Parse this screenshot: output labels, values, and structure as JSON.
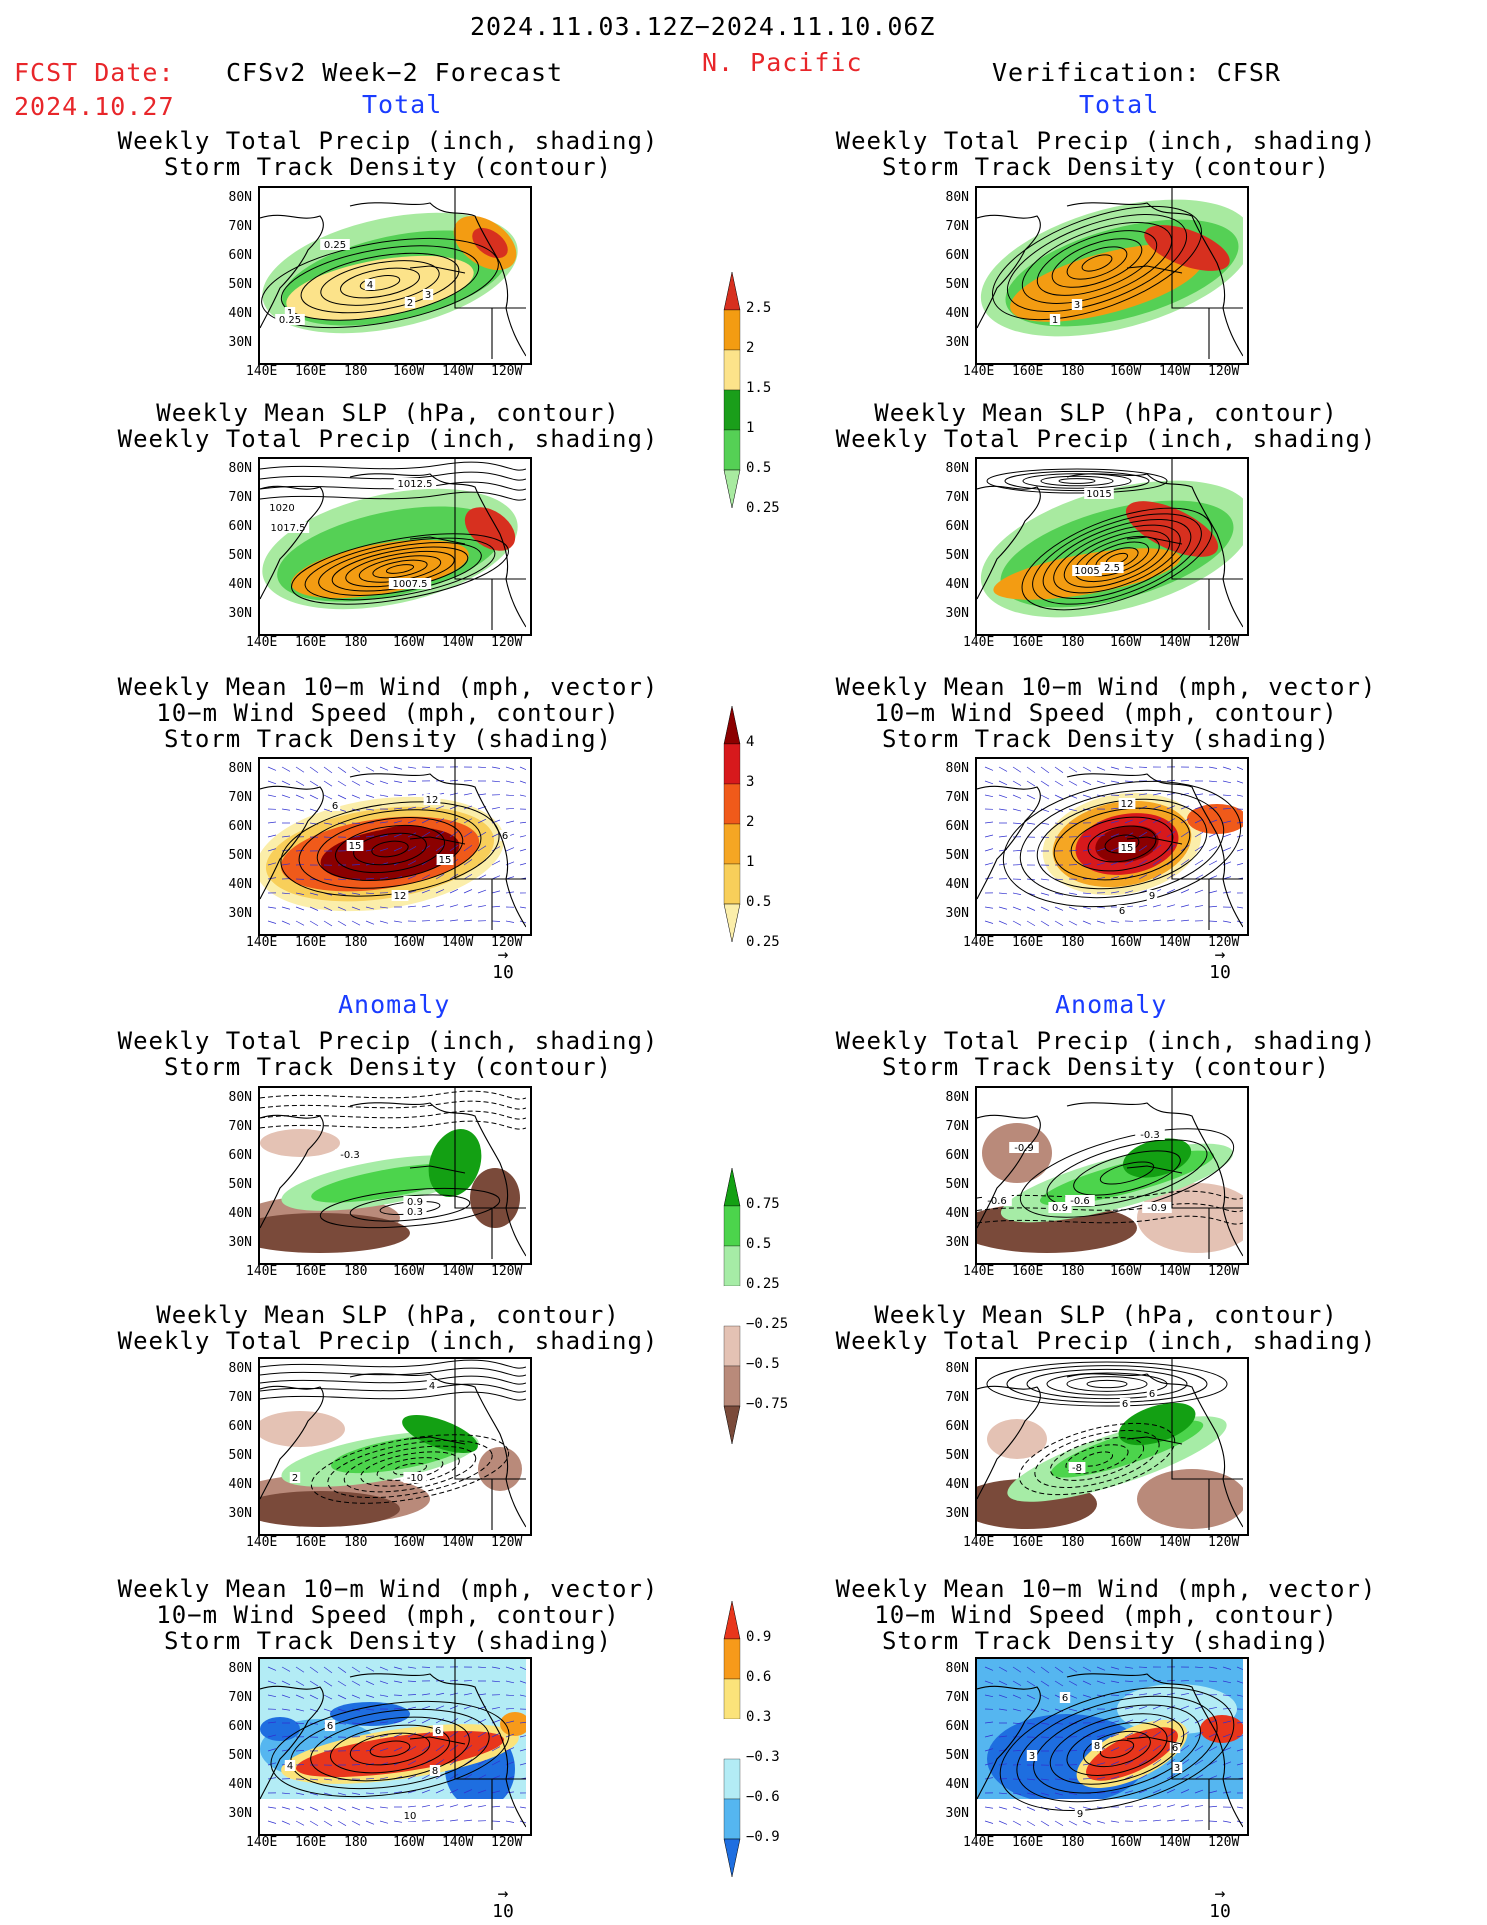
{
  "header": {
    "date_range": "2024.11.03.12Z−2024.11.10.06Z",
    "region": "N. Pacific",
    "fcst_label": "FCST Date:",
    "fcst_date": "2024.10.27",
    "left_title": "CFSv2 Week−2 Forecast",
    "right_title": "Verification: CFSR"
  },
  "sections": {
    "total": "Total",
    "anomaly": "Anomaly"
  },
  "panel_titles": {
    "precip_storm": [
      "Weekly Total Precip (inch, shading)",
      "Storm Track Density (contour)"
    ],
    "slp_precip": [
      "Weekly Mean SLP (hPa, contour)",
      "Weekly Total Precip (inch, shading)"
    ],
    "wind_storm": [
      "Weekly Mean 10−m Wind (mph, vector)",
      "10−m Wind Speed (mph, contour)",
      "Storm Track Density (shading)"
    ]
  },
  "axes": {
    "lat_labels": [
      "80N",
      "70N",
      "60N",
      "50N",
      "40N",
      "30N"
    ],
    "lon_labels": [
      "140E",
      "160E",
      "180",
      "160W",
      "140W",
      "120W"
    ]
  },
  "vector_ref": {
    "arrow": "→",
    "value": "10"
  },
  "contour_labels": {
    "t_fc_precip": [
      "0.25",
      "4",
      "3",
      "2",
      "1",
      "0.25"
    ],
    "t_vf_precip": [
      "3",
      "1"
    ],
    "t_fc_slp": [
      "1012.5",
      "1020",
      "1017.5",
      "1007.5"
    ],
    "t_vf_slp": [
      "1015",
      "1005",
      "2.5"
    ],
    "t_fc_wind": [
      "6",
      "12",
      "15",
      "15",
      "6",
      "12"
    ],
    "t_vf_wind": [
      "12",
      "15",
      "9",
      "6"
    ],
    "a_fc_precip": [
      "-0.3",
      "0.9",
      "0.3"
    ],
    "a_vf_precip": [
      "-0.3",
      "-0.9",
      "-0.6",
      "0.9",
      "-0.6",
      "-0.9"
    ],
    "a_fc_slp": [
      "4",
      "2",
      "-10"
    ],
    "a_vf_slp": [
      "6",
      "6",
      "-8"
    ],
    "a_fc_wind": [
      "6",
      "4",
      "6",
      "8",
      "10"
    ],
    "a_vf_wind": [
      "6",
      "3",
      "8",
      "6",
      "3",
      "9"
    ]
  },
  "colorbars": {
    "precip": {
      "labels": [
        "2.5",
        "2",
        "1.5",
        "1",
        "0.5",
        "0.25"
      ],
      "colors": [
        "#d7301f",
        "#f39c12",
        "#fce38a",
        "#1a9e1a",
        "#55d055",
        "#a8eaa0"
      ]
    },
    "storm_density": {
      "labels": [
        "4",
        "3",
        "2",
        "1",
        "0.5",
        "0.25"
      ],
      "colors": [
        "#8b0000",
        "#d7191c",
        "#f05a1a",
        "#f5a623",
        "#f8cf5a",
        "#fbeeaa"
      ]
    },
    "precip_anom": {
      "labels": [
        "0.75",
        "0.5",
        "0.25",
        "−0.25",
        "−0.5",
        "−0.75"
      ],
      "colors": [
        "#13a013",
        "#4cd44c",
        "#a6eca6",
        "#ffffff",
        "#e4c2b4",
        "#b98a7a",
        "#7a4a3a"
      ]
    },
    "storm_anom": {
      "labels": [
        "0.9",
        "0.6",
        "0.3",
        "−0.3",
        "−0.6",
        "−0.9"
      ],
      "colors": [
        "#e8361c",
        "#f79a1a",
        "#fbe37a",
        "#ffffff",
        "#b3ecf5",
        "#55b6f0",
        "#1e6ee0"
      ]
    }
  }
}
